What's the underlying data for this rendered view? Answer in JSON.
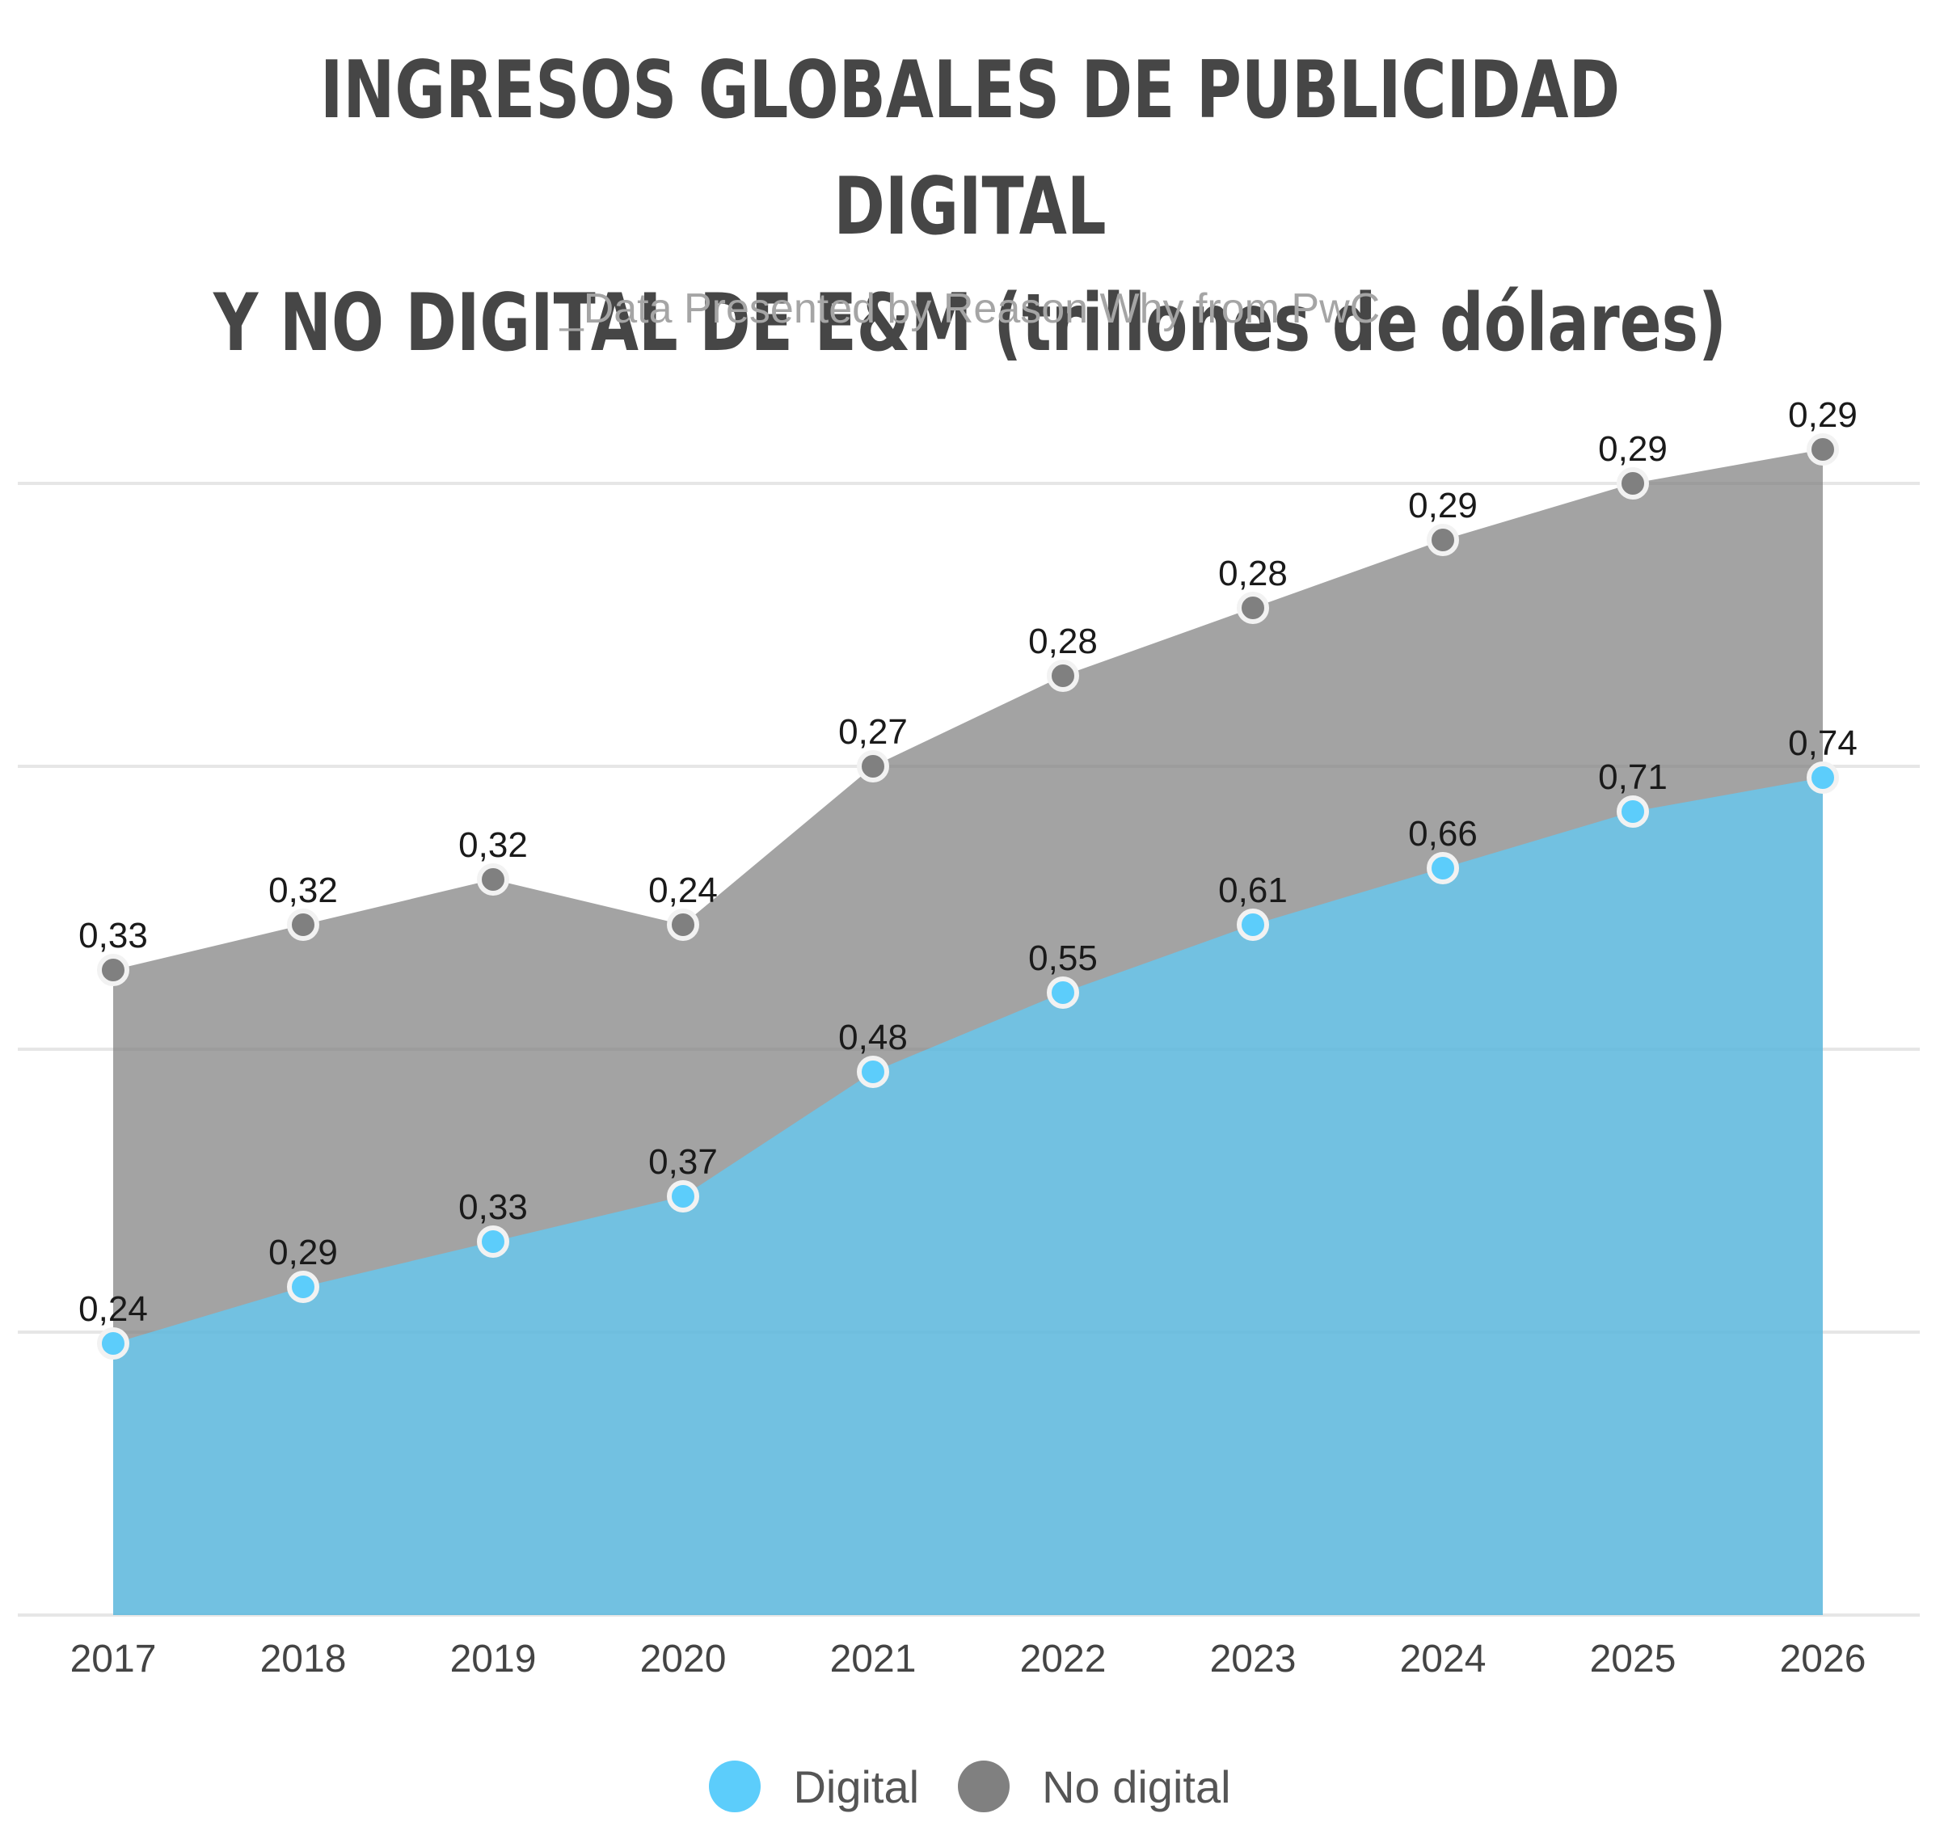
{
  "title_line1": "INGRESOS GLOBALES DE PUBLICIDAD DIGITAL",
  "title_line2": "Y NO DIGITAL DE E&M (trillones de dólares)",
  "subtitle": "_Data Presented by Reason Why from PwC",
  "colors": {
    "digital": "#5ccdfb",
    "no_digital": "#808080"
  },
  "chart_data": {
    "type": "area",
    "stacked": true,
    "title": "INGRESOS GLOBALES DE PUBLICIDAD DIGITAL Y NO DIGITAL DE E&M (trillones de dólares)",
    "categories": [
      "2017",
      "2018",
      "2019",
      "2020",
      "2021",
      "2022",
      "2023",
      "2024",
      "2025",
      "2026"
    ],
    "series": [
      {
        "name": "Digital",
        "values": [
          0.24,
          0.29,
          0.33,
          0.37,
          0.48,
          0.55,
          0.61,
          0.66,
          0.71,
          0.74
        ],
        "labels": [
          "0,24",
          "0,29",
          "0,33",
          "0,37",
          "0,48",
          "0,55",
          "0,61",
          "0,66",
          "0,71",
          "0,74"
        ]
      },
      {
        "name": "No digital",
        "values": [
          0.33,
          0.32,
          0.32,
          0.24,
          0.27,
          0.28,
          0.28,
          0.29,
          0.29,
          0.29
        ],
        "labels": [
          "0,33",
          "0,32",
          "0,32",
          "0,24",
          "0,27",
          "0,28",
          "0,28",
          "0,29",
          "0,29",
          "0,29"
        ]
      }
    ],
    "ylim": [
      0,
      1.04
    ],
    "grid": true,
    "legend": "bottom-center"
  },
  "legend": [
    {
      "label": "Digital",
      "icon": "circle"
    },
    {
      "label": "No digital",
      "icon": "circle"
    }
  ]
}
